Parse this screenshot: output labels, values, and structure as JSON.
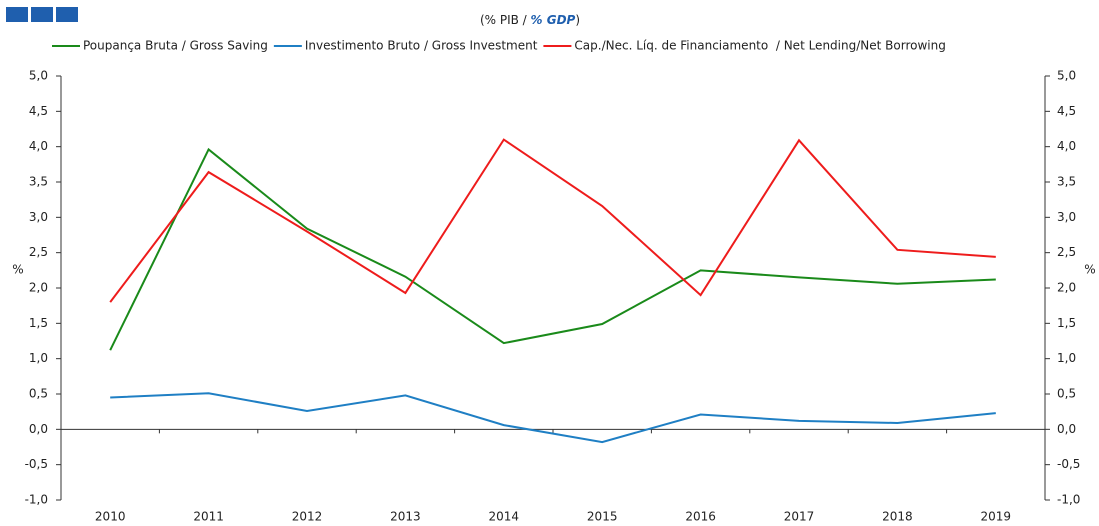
{
  "chart_data": {
    "type": "line",
    "title": {
      "prefix": "(% PIB / ",
      "emphasis": "% GDP",
      "suffix": ")"
    },
    "ylabel": "%",
    "y2label": "%",
    "categories": [
      "2010",
      "2011",
      "2012",
      "2013",
      "2014",
      "2015",
      "2016",
      "2017",
      "2018",
      "2019"
    ],
    "series": [
      {
        "name": "Poupança Bruta / Gross Saving",
        "color": "#1a8a1a",
        "values": [
          1.12,
          3.96,
          2.84,
          2.16,
          1.22,
          1.49,
          2.25,
          2.15,
          2.06,
          2.12
        ]
      },
      {
        "name": "Investimento Bruto / Gross Investment",
        "color": "#1f7fc4",
        "values": [
          0.45,
          0.51,
          0.26,
          0.48,
          0.06,
          -0.18,
          0.21,
          0.12,
          0.09,
          0.23
        ]
      },
      {
        "name": "Cap./Nec. Líq. de Financiamento  / Net Lending/Net Borrowing",
        "color": "#ee1c1c",
        "values": [
          1.8,
          3.64,
          2.8,
          1.93,
          4.1,
          3.16,
          1.9,
          4.09,
          2.54,
          2.44
        ]
      }
    ],
    "ylim": [
      -1,
      5
    ],
    "yticks": [
      {
        "value": -1,
        "label": "-1,0"
      },
      {
        "value": -0.5,
        "label": "-0,5"
      },
      {
        "value": 0,
        "label": "0,0"
      },
      {
        "value": 0.5,
        "label": "0,5"
      },
      {
        "value": 1,
        "label": "1,0"
      },
      {
        "value": 1.5,
        "label": "1,5"
      },
      {
        "value": 2,
        "label": "2,0"
      },
      {
        "value": 2.5,
        "label": "2,5"
      },
      {
        "value": 3,
        "label": "3,0"
      },
      {
        "value": 3.5,
        "label": "3,5"
      },
      {
        "value": 4,
        "label": "4,0"
      },
      {
        "value": 4.5,
        "label": "4,5"
      },
      {
        "value": 5,
        "label": "5,0"
      }
    ],
    "y2lim": [
      -1,
      5
    ],
    "y2ticks": [
      {
        "value": -1,
        "label": "-1,0"
      },
      {
        "value": -0.5,
        "label": "-0,5"
      },
      {
        "value": 0,
        "label": "0,0"
      },
      {
        "value": 0.5,
        "label": "0,5"
      },
      {
        "value": 1,
        "label": "1,0"
      },
      {
        "value": 1.5,
        "label": "1,5"
      },
      {
        "value": 2,
        "label": "2,0"
      },
      {
        "value": 2.5,
        "label": "2,5"
      },
      {
        "value": 3,
        "label": "3,0"
      },
      {
        "value": 3.5,
        "label": "3,5"
      },
      {
        "value": 4,
        "label": "4,0"
      },
      {
        "value": 4.5,
        "label": "4,5"
      },
      {
        "value": 5,
        "label": "5,0"
      }
    ],
    "grid": false
  }
}
